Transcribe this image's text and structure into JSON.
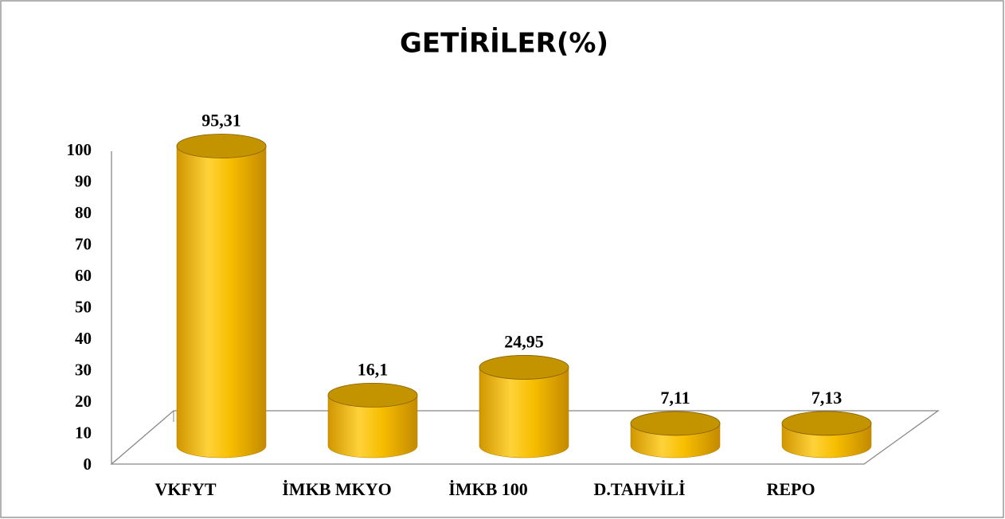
{
  "chart_data": {
    "type": "bar",
    "title": "GETİRİLER(%)",
    "categories": [
      "VKFYT",
      "İMKB MKYO",
      "İMKB 100",
      "D.TAHVİLİ",
      "REPO"
    ],
    "values": [
      95.31,
      16.1,
      24.95,
      7.11,
      7.13
    ],
    "value_labels": [
      "95,31",
      "16,1",
      "24,95",
      "7,11",
      "7,13"
    ],
    "color": "#f5b800",
    "ylim": [
      0,
      100
    ],
    "yticks": [
      0,
      10,
      20,
      30,
      40,
      50,
      60,
      70,
      80,
      90,
      100
    ],
    "grid": false
  }
}
